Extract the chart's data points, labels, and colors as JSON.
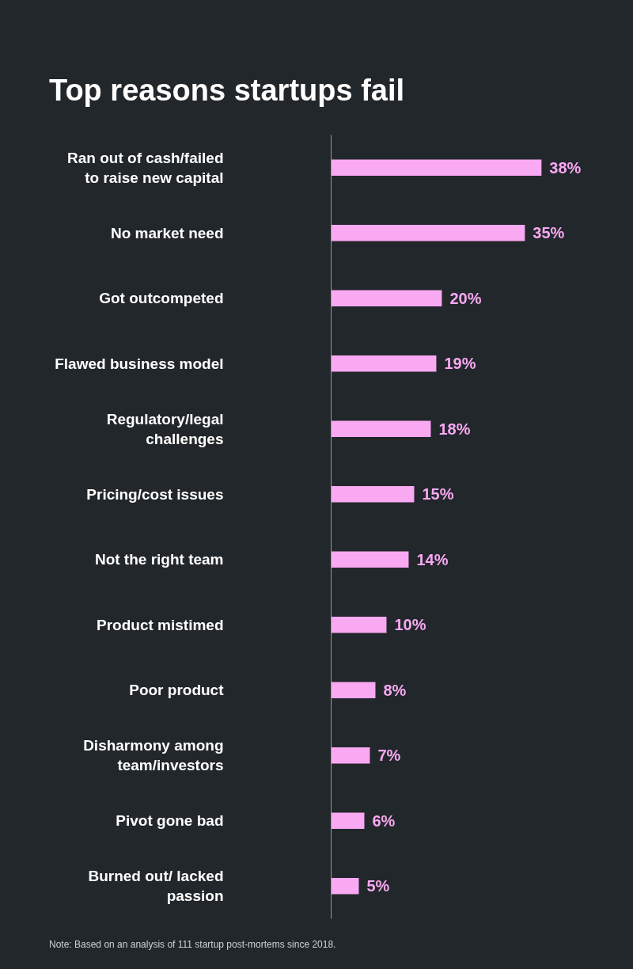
{
  "chart_data": {
    "type": "bar",
    "orientation": "horizontal",
    "title": "Top reasons startups fail",
    "categories": [
      "Ran out of cash/failed to raise new capital",
      "No market need",
      "Got outcompeted",
      "Flawed business model",
      "Regulatory/legal challenges",
      "Pricing/cost issues",
      "Not the right team",
      "Product mistimed",
      "Poor product",
      "Disharmony among team/investors",
      "Pivot gone bad",
      "Burned out/ lacked passion"
    ],
    "values": [
      38,
      35,
      20,
      19,
      18,
      15,
      14,
      10,
      8,
      7,
      6,
      5
    ],
    "value_labels": [
      "38%",
      "35%",
      "20%",
      "19%",
      "18%",
      "15%",
      "14%",
      "10%",
      "8%",
      "7%",
      "6%",
      "5%"
    ],
    "color": "#f9a8f2",
    "tick_labels": "y",
    "grid": false,
    "annotations": [
      "Note: Based on an analysis of 111 startup post-mortems since 2018."
    ]
  }
}
